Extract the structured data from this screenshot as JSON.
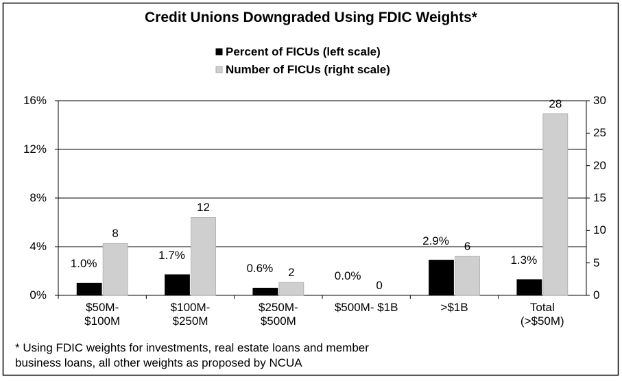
{
  "chart_data": {
    "type": "bar",
    "title": "Credit Unions Downgraded Using FDIC Weights*",
    "categories": [
      "$50M-\n$100M",
      "$100M-\n$250M",
      "$250M-\n$500M",
      "$500M- $1B",
      ">$1B",
      "Total\n(>$50M)"
    ],
    "series": [
      {
        "name": "Percent of FICUs (left scale)",
        "color": "#000000",
        "values": [
          1.0,
          1.7,
          0.6,
          0.0,
          2.9,
          1.3
        ],
        "value_labels": [
          "1.0%",
          "1.7%",
          "0.6%",
          "0.0%",
          "2.9%",
          "1.3%"
        ]
      },
      {
        "name": "Number of FICUs (right scale)",
        "color": "#cfcfcf",
        "axis": "y2",
        "values": [
          8,
          12,
          2,
          0,
          6,
          28
        ]
      }
    ],
    "ylim": [
      0,
      16
    ],
    "yticks": [
      {
        "value": 0,
        "label": "0%"
      },
      {
        "value": 4,
        "label": "4%"
      },
      {
        "value": 8,
        "label": "8%"
      },
      {
        "value": 12,
        "label": "12%"
      },
      {
        "value": 16,
        "label": "16%"
      }
    ],
    "y2lim": [
      0,
      30
    ],
    "y2ticks": [
      0,
      5,
      10,
      15,
      20,
      25,
      30
    ],
    "grid": true,
    "legend": "top",
    "footnote": "* Using FDIC weights for investments, real estate loans and member\nbusiness loans, all other weights as proposed by NCUA"
  }
}
